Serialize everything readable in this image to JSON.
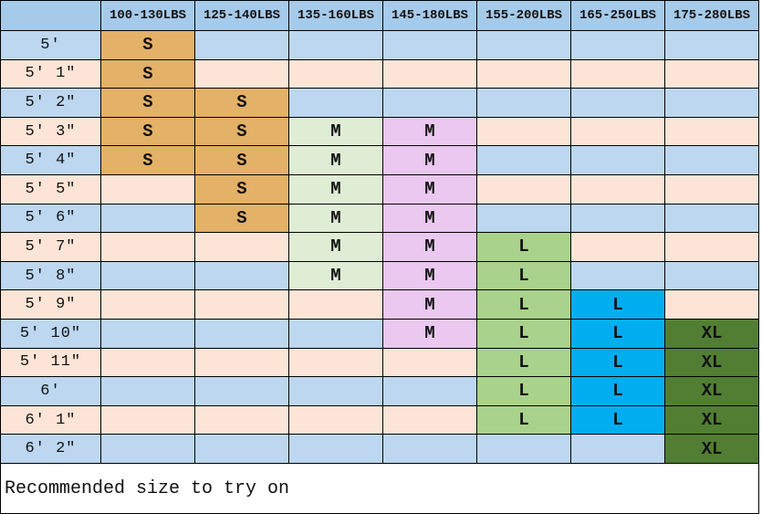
{
  "chart_data": {
    "type": "table",
    "title": "",
    "columns": [
      "",
      "100-130LBS",
      "125-140LBS",
      "135-160LBS",
      "145-180LBS",
      "155-200LBS",
      "165-250LBS",
      "175-280LBS"
    ],
    "rows": [
      {
        "height": "5′",
        "sizes": [
          "S",
          "",
          "",
          "",
          "",
          "",
          ""
        ]
      },
      {
        "height": "5′ 1″",
        "sizes": [
          "S",
          "",
          "",
          "",
          "",
          "",
          ""
        ]
      },
      {
        "height": "5′ 2″",
        "sizes": [
          "S",
          "S",
          "",
          "",
          "",
          "",
          ""
        ]
      },
      {
        "height": "5′ 3″",
        "sizes": [
          "S",
          "S",
          "M",
          "M",
          "",
          "",
          ""
        ]
      },
      {
        "height": "5′ 4″",
        "sizes": [
          "S",
          "S",
          "M",
          "M",
          "",
          "",
          ""
        ]
      },
      {
        "height": "5′ 5″",
        "sizes": [
          "",
          "S",
          "M",
          "M",
          "",
          "",
          ""
        ]
      },
      {
        "height": "5′ 6″",
        "sizes": [
          "",
          "S",
          "M",
          "M",
          "",
          "",
          ""
        ]
      },
      {
        "height": "5′ 7″",
        "sizes": [
          "",
          "",
          "M",
          "M",
          "L",
          "",
          ""
        ]
      },
      {
        "height": "5′ 8″",
        "sizes": [
          "",
          "",
          "M",
          "M",
          "L",
          "",
          ""
        ]
      },
      {
        "height": "5′ 9″",
        "sizes": [
          "",
          "",
          "",
          "M",
          "L",
          "L",
          ""
        ]
      },
      {
        "height": "5′ 10″",
        "sizes": [
          "",
          "",
          "",
          "M",
          "L",
          "L",
          "XL"
        ]
      },
      {
        "height": "5′ 11″",
        "sizes": [
          "",
          "",
          "",
          "",
          "L",
          "L",
          "XL"
        ]
      },
      {
        "height": "6′",
        "sizes": [
          "",
          "",
          "",
          "",
          "L",
          "L",
          "XL"
        ]
      },
      {
        "height": "6′ 1″",
        "sizes": [
          "",
          "",
          "",
          "",
          "L",
          "L",
          "XL"
        ]
      },
      {
        "height": "6′ 2″",
        "sizes": [
          "",
          "",
          "",
          "",
          "",
          "",
          "XL"
        ]
      }
    ],
    "footer_note": "Recommended size to try on",
    "legend": {
      "S_columns": [
        "100-130LBS",
        "125-140LBS"
      ],
      "M_columns": [
        "135-160LBS",
        "145-180LBS"
      ],
      "L_columns": [
        "155-200LBS",
        "165-250LBS"
      ],
      "XL_columns": [
        "175-280LBS"
      ]
    }
  },
  "colors": {
    "header_bg": "#A6CAE9",
    "row_blue": "#BCD7EF",
    "row_peach": "#FCE5D6",
    "border": "#000000",
    "size_fill_by_column": [
      "#E3B167",
      "#E3B167",
      "#DEEDD4",
      "#EAC8F0",
      "#A9D28D",
      "#00AEEF",
      "#517E33"
    ],
    "text": "#111111"
  }
}
